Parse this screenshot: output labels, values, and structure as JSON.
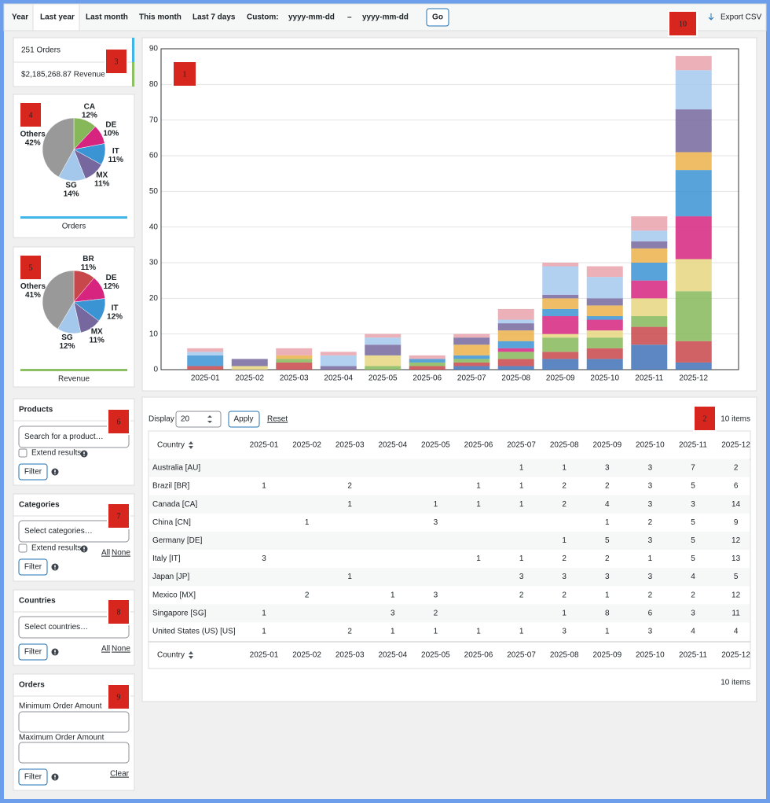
{
  "nav": {
    "tabs": [
      "Year",
      "Last year",
      "Last month",
      "This month",
      "Last 7 days"
    ],
    "active": 1,
    "custom_label": "Custom:",
    "date_from": "yyyy-mm-dd",
    "separator": "–",
    "date_to": "yyyy-mm-dd",
    "go": "Go",
    "export": "Export CSV"
  },
  "summary": {
    "orders": "251 Orders",
    "revenue": "$2,185,268.87 Revenue"
  },
  "chart_data": [
    {
      "type": "bar",
      "stacked": true,
      "grid": true,
      "categories": [
        "2025-01",
        "2025-02",
        "2025-03",
        "2025-04",
        "2025-05",
        "2025-06",
        "2025-07",
        "2025-08",
        "2025-09",
        "2025-10",
        "2025-11",
        "2025-12"
      ],
      "ylim": [
        0,
        90
      ],
      "yticks": [
        0,
        10,
        20,
        30,
        40,
        50,
        60,
        70,
        80,
        90
      ],
      "series": [
        {
          "name": "Australia [AU]",
          "color": "#3f72b8",
          "values": [
            null,
            null,
            null,
            null,
            null,
            null,
            1,
            1,
            3,
            3,
            7,
            2
          ]
        },
        {
          "name": "Brazil [BR]",
          "color": "#c8474a",
          "values": [
            1,
            null,
            2,
            null,
            null,
            1,
            1,
            2,
            2,
            3,
            5,
            6
          ]
        },
        {
          "name": "Canada [CA]",
          "color": "#86b85a",
          "values": [
            null,
            null,
            1,
            null,
            1,
            1,
            1,
            2,
            4,
            3,
            3,
            14
          ]
        },
        {
          "name": "China [CN]",
          "color": "#e6d67f",
          "values": [
            null,
            1,
            null,
            null,
            3,
            null,
            null,
            null,
            1,
            2,
            5,
            9
          ]
        },
        {
          "name": "Germany [DE]",
          "color": "#d6247f",
          "values": [
            null,
            null,
            null,
            null,
            null,
            null,
            null,
            1,
            5,
            3,
            5,
            12
          ]
        },
        {
          "name": "Italy [IT]",
          "color": "#3a93d3",
          "values": [
            3,
            null,
            null,
            null,
            null,
            1,
            1,
            2,
            2,
            1,
            5,
            13
          ]
        },
        {
          "name": "Japan [JP]",
          "color": "#ebb24a",
          "values": [
            null,
            null,
            1,
            null,
            null,
            null,
            3,
            3,
            3,
            3,
            4,
            5
          ]
        },
        {
          "name": "Mexico [MX]",
          "color": "#76679e",
          "values": [
            null,
            2,
            null,
            1,
            3,
            null,
            2,
            2,
            1,
            2,
            2,
            12
          ]
        },
        {
          "name": "Singapore [SG]",
          "color": "#a4c8ec",
          "values": [
            1,
            null,
            null,
            3,
            2,
            null,
            null,
            1,
            8,
            6,
            3,
            11
          ]
        },
        {
          "name": "United States (US) [US]",
          "color": "#e9a3ab",
          "values": [
            1,
            null,
            2,
            1,
            1,
            1,
            1,
            3,
            1,
            3,
            4,
            4
          ]
        }
      ]
    },
    {
      "type": "pie",
      "title": "Orders",
      "accent": "#3fb5e8",
      "categories": [
        "CA",
        "DE",
        "IT",
        "MX",
        "SG",
        "Others"
      ],
      "values": [
        12,
        10,
        11,
        11,
        14,
        42
      ],
      "value_labels": [
        "12%",
        "10%",
        "11%",
        "11%",
        "14%",
        "42%"
      ],
      "colors": [
        "#86b85a",
        "#d6247f",
        "#3a93d3",
        "#76679e",
        "#a4c8ec",
        "#999999"
      ]
    },
    {
      "type": "pie",
      "title": "Revenue",
      "accent": "#8cc063",
      "categories": [
        "BR",
        "DE",
        "IT",
        "MX",
        "SG",
        "Others"
      ],
      "values": [
        11,
        12,
        12,
        11,
        12,
        41
      ],
      "value_labels": [
        "11%",
        "12%",
        "12%",
        "11%",
        "12%",
        "41%"
      ],
      "colors": [
        "#c8474a",
        "#d6247f",
        "#3a93d3",
        "#76679e",
        "#a4c8ec",
        "#999999"
      ]
    }
  ],
  "table": {
    "display_label": "Display",
    "per_page": "20",
    "apply": "Apply",
    "reset": "Reset",
    "items": "10 items",
    "country_header": "Country"
  },
  "filters": {
    "products": {
      "title": "Products",
      "placeholder": "Search for a product…",
      "extend": "Extend results",
      "filter": "Filter"
    },
    "categories": {
      "title": "Categories",
      "placeholder": "Select categories…",
      "extend": "Extend results",
      "filter": "Filter",
      "all": "All",
      "none": "None"
    },
    "countries": {
      "title": "Countries",
      "placeholder": "Select countries…",
      "filter": "Filter",
      "all": "All",
      "none": "None"
    },
    "orders": {
      "title": "Orders",
      "min_label": "Minimum Order Amount",
      "max_label": "Maximum Order Amount",
      "filter": "Filter",
      "clear": "Clear"
    }
  },
  "badges": [
    1,
    2,
    3,
    4,
    5,
    6,
    7,
    8,
    9,
    10
  ]
}
